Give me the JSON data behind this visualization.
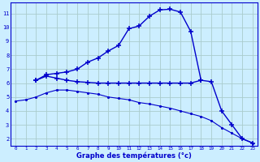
{
  "xlabel": "Graphe des températures (°c)",
  "bg_color": "#cceeff",
  "grid_color": "#aacccc",
  "line_color": "#0000cc",
  "xlim": [
    -0.5,
    23.5
  ],
  "ylim": [
    1.5,
    11.8
  ],
  "xticks": [
    0,
    1,
    2,
    3,
    4,
    5,
    6,
    7,
    8,
    9,
    10,
    11,
    12,
    13,
    14,
    15,
    16,
    17,
    18,
    19,
    20,
    21,
    22,
    23
  ],
  "yticks": [
    2,
    3,
    4,
    5,
    6,
    7,
    8,
    9,
    10,
    11
  ],
  "line1_x": [
    2,
    3,
    4,
    5,
    6,
    7,
    8,
    9,
    10,
    11,
    12,
    13,
    14,
    15,
    16,
    17,
    18,
    19,
    20,
    21,
    22,
    23
  ],
  "line1_y": [
    6.2,
    6.6,
    6.7,
    6.8,
    7.0,
    7.5,
    7.8,
    8.3,
    8.7,
    9.9,
    10.1,
    10.8,
    11.25,
    11.3,
    11.1,
    9.7,
    6.2,
    6.1,
    4.0,
    3.0,
    2.0,
    1.7
  ],
  "line2_x": [
    2,
    3,
    4,
    5,
    6,
    7,
    8,
    9,
    10,
    11,
    12,
    13,
    14,
    15,
    16,
    17,
    18
  ],
  "line2_y": [
    6.2,
    6.5,
    6.35,
    6.2,
    6.1,
    6.05,
    6.0,
    6.0,
    6.0,
    6.0,
    6.0,
    6.0,
    6.0,
    6.0,
    6.0,
    6.0,
    6.2
  ],
  "line3_x": [
    0,
    1,
    2,
    3,
    4,
    5,
    6,
    7,
    8,
    9,
    10,
    11,
    12,
    13,
    14,
    15,
    16,
    17,
    18,
    19,
    20,
    21,
    22,
    23
  ],
  "line3_y": [
    4.7,
    4.8,
    5.0,
    5.3,
    5.5,
    5.5,
    5.4,
    5.3,
    5.2,
    5.0,
    4.9,
    4.8,
    4.6,
    4.5,
    4.35,
    4.2,
    4.0,
    3.8,
    3.6,
    3.3,
    2.8,
    2.4,
    2.0,
    1.7
  ]
}
